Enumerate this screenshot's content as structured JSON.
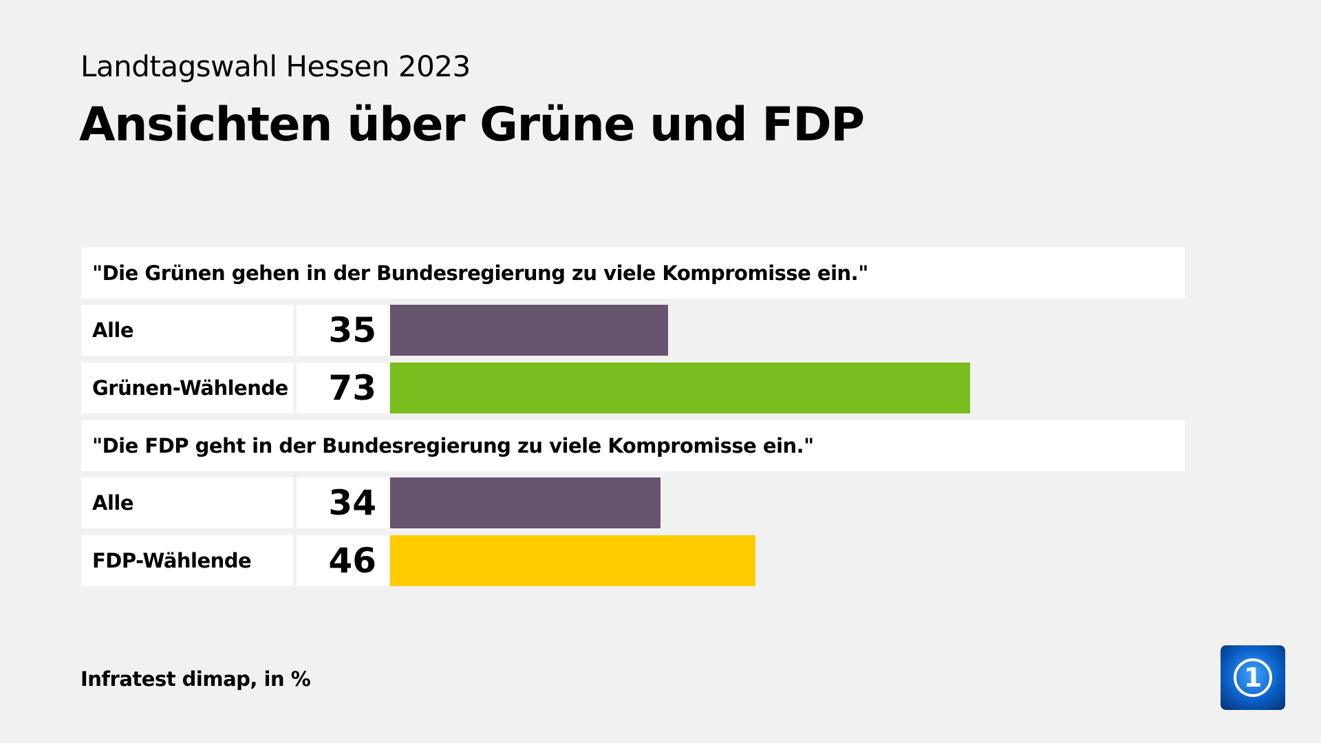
{
  "header": {
    "subtitle": "Landtagswahl Hessen 2023",
    "title": "Ansichten über Grüne und FDP"
  },
  "chart_data": {
    "type": "bar",
    "orientation": "horizontal",
    "unit": "%",
    "xlim": [
      0,
      100
    ],
    "groups": [
      {
        "question": "\"Die Grünen gehen in der Bundesregierung zu viele Kompromisse ein.\"",
        "rows": [
          {
            "label": "Alle",
            "value": 35,
            "color": "#67546f"
          },
          {
            "label": "Grünen-Wählende",
            "value": 73,
            "color": "#7abd1f"
          }
        ]
      },
      {
        "question": "\"Die FDP geht in der Bundesregierung zu viele Kompromisse ein.\"",
        "rows": [
          {
            "label": "Alle",
            "value": 34,
            "color": "#67546f"
          },
          {
            "label": "FDP-Wählende",
            "value": 46,
            "color": "#ffcc00"
          }
        ]
      }
    ]
  },
  "footer": {
    "source": "Infratest dimap, in %"
  },
  "logo": {
    "text": "1",
    "icon": "ard-logo"
  }
}
